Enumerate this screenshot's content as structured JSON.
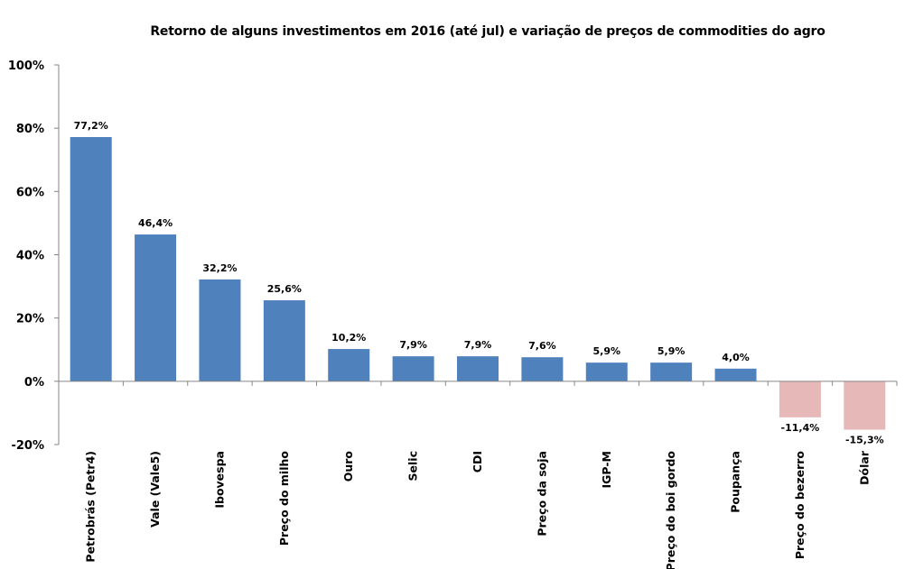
{
  "chart_data": {
    "type": "bar",
    "title": "Retorno de alguns investimentos em 2016 (até jul) e variação de preços de commodities do agro",
    "xlabel": "",
    "ylabel": "",
    "ylim": [
      -20,
      100
    ],
    "yticks": [
      -20,
      0,
      20,
      40,
      60,
      80,
      100
    ],
    "ytick_labels": [
      "-20%",
      "0%",
      "20%",
      "40%",
      "60%",
      "80%",
      "100%"
    ],
    "categories": [
      "Petrobrás (Petr4)",
      "Vale (Vale5)",
      "Ibovespa",
      "Preço do milho",
      "Ouro",
      "Selic",
      "CDI",
      "Preço da soja",
      "IGP-M",
      "Preço do boi gordo",
      "Poupança",
      "Preço do bezerro",
      "Dólar"
    ],
    "values": [
      77.2,
      46.4,
      32.2,
      25.6,
      10.2,
      7.9,
      7.9,
      7.6,
      5.9,
      5.9,
      4.0,
      -11.4,
      -15.3
    ],
    "data_labels": [
      "77,2%",
      "46,4%",
      "32,2%",
      "25,6%",
      "10,2%",
      "7,9%",
      "7,9%",
      "7,6%",
      "5,9%",
      "5,9%",
      "4,0%",
      "-11,4%",
      "-15,3%"
    ],
    "grid": false,
    "legend": "none",
    "colors": {
      "positive": "#4f81bd",
      "negative": "#e6b9b8",
      "axis": "#868686"
    }
  }
}
